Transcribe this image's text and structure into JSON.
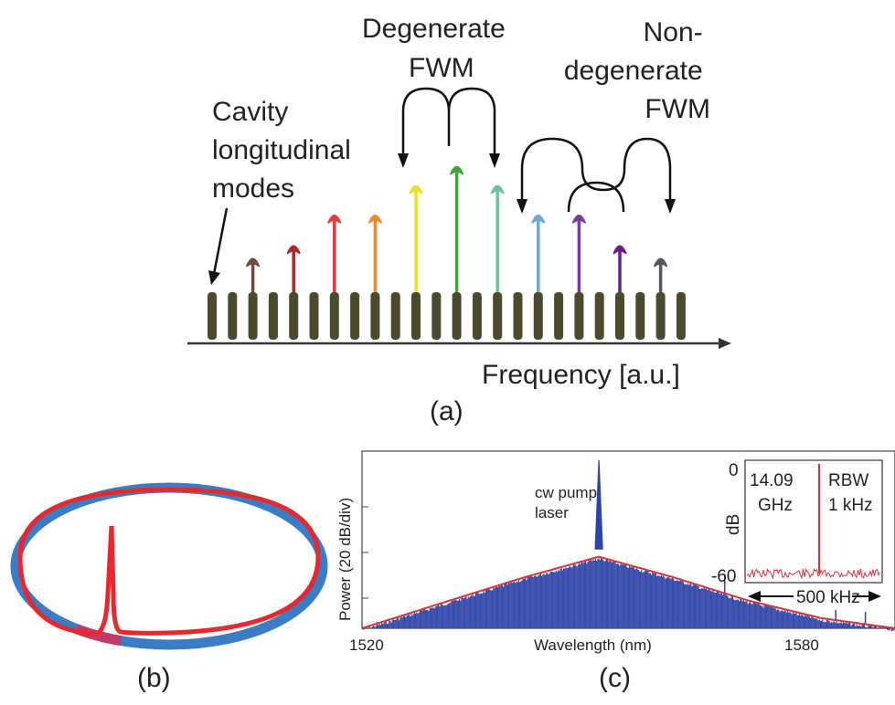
{
  "panel_a": {
    "label": "(a)",
    "axis_label": "Frequency [a.u.]",
    "cavity_label": [
      "Cavity",
      "longitudinal",
      "modes"
    ],
    "degenerate_label": [
      "Degenerate",
      "FWM"
    ],
    "nondegenerate_label": [
      "Non-",
      "degenerate",
      "FWM"
    ],
    "mode_count": 24,
    "mode_color": "#4b4a2e",
    "comb_arrows": [
      {
        "mode": 2,
        "level": 0.28,
        "color": "#6d4c41",
        "icon": "up-arrow-icon"
      },
      {
        "mode": 4,
        "level": 0.38,
        "color": "#a52a2a",
        "icon": "up-arrow-icon"
      },
      {
        "mode": 6,
        "level": 0.62,
        "color": "#e23b3b",
        "icon": "up-arrow-icon"
      },
      {
        "mode": 8,
        "level": 0.62,
        "color": "#f08a2a",
        "icon": "up-arrow-icon"
      },
      {
        "mode": 10,
        "level": 0.85,
        "color": "#e9df2a",
        "icon": "up-arrow-icon"
      },
      {
        "mode": 12,
        "level": 1.0,
        "color": "#3fa33f",
        "icon": "up-arrow-icon"
      },
      {
        "mode": 14,
        "level": 0.85,
        "color": "#6cc39a",
        "icon": "up-arrow-icon"
      },
      {
        "mode": 16,
        "level": 0.62,
        "color": "#6aa8de",
        "icon": "up-arrow-icon"
      },
      {
        "mode": 18,
        "level": 0.62,
        "color": "#7a3b9a",
        "icon": "up-arrow-icon"
      },
      {
        "mode": 20,
        "level": 0.38,
        "color": "#6a1f8a",
        "icon": "up-arrow-icon"
      },
      {
        "mode": 22,
        "level": 0.28,
        "color": "#555566",
        "icon": "up-arrow-icon"
      }
    ]
  },
  "panel_b": {
    "label": "(b)",
    "ring_color": "#3a7dc4",
    "pulse_color": "#e8282e"
  },
  "panel_c": {
    "label": "(c)",
    "ylabel": "Power (20 dB/div)",
    "xlabel": "Wavelength (nm)",
    "annotation": [
      "cw pump",
      "laser"
    ],
    "spectrum_color": "#2d43a8",
    "envelope_color": "#d9323a",
    "inset": {
      "ytick_top": "0",
      "ytick_bottom": "-60",
      "ylabel": "dB",
      "left_text": [
        "14.09",
        "GHz"
      ],
      "right_text": [
        "RBW",
        "1 kHz"
      ],
      "span_label": "500 kHz",
      "trace_color": "#d9323a"
    }
  },
  "chart_data": {
    "type": "line",
    "xlabel": "Wavelength (nm)",
    "ylabel": "Power (20 dB/div)",
    "x_ticks": [
      1520,
      1580
    ],
    "xlim": [
      1518,
      1590
    ],
    "pump_wavelength": 1550,
    "envelope": {
      "x": [
        1518,
        1530,
        1540,
        1550,
        1560,
        1570,
        1580,
        1590
      ],
      "y": [
        0.0,
        0.55,
        1.0,
        1.4,
        1.0,
        0.55,
        0.2,
        0.0
      ]
    }
  }
}
